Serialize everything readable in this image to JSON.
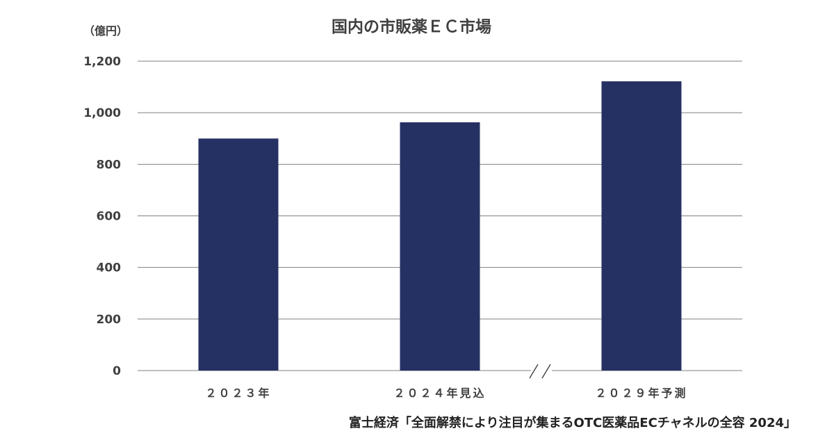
{
  "source": "富士経済「全面解禁により注目が集まるOTC医薬品ECチャネルの全容 2024」",
  "chart_data": {
    "type": "bar",
    "title": "国内の市販薬ＥＣ市場",
    "unit_label": "（億円）",
    "xlabel": "",
    "ylabel": "",
    "categories": [
      "２０２３年",
      "２０２４年見込",
      "２０２９年予測"
    ],
    "series": [
      {
        "values": [
          900,
          963,
          1122
        ],
        "color": "#263163"
      }
    ],
    "ylim": [
      0,
      1200
    ],
    "yticks": [
      0,
      200,
      400,
      600,
      800,
      1000,
      1200
    ],
    "ytick_labels": [
      "0",
      "200",
      "400",
      "600",
      "800",
      "1,000",
      "1,200"
    ],
    "grid": true,
    "axis_break_between": [
      1,
      2
    ],
    "legend": "none"
  }
}
